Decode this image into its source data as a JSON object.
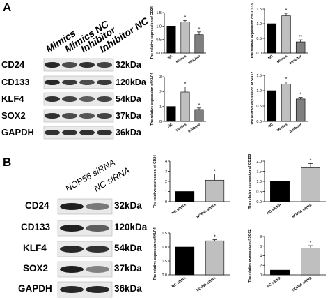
{
  "panels": {
    "a": {
      "letter": "A",
      "lanes": [
        "Mimics",
        "Mimics NC",
        "Inhibitor",
        "Inhibitor NC"
      ],
      "blots": [
        {
          "protein": "CD24",
          "kda": "32kDa",
          "intensity": [
            0.9,
            0.7,
            0.85,
            0.75
          ]
        },
        {
          "protein": "CD133",
          "kda": "120kDa",
          "intensity": [
            0.9,
            0.8,
            0.7,
            0.8
          ]
        },
        {
          "protein": "KLF4",
          "kda": "54kDa",
          "intensity": [
            0.85,
            0.75,
            0.6,
            0.75
          ]
        },
        {
          "protein": "SOX2",
          "kda": "37kDa",
          "intensity": [
            0.85,
            0.7,
            0.65,
            0.75
          ]
        },
        {
          "protein": "GAPDH",
          "kda": "36kDa",
          "intensity": [
            0.85,
            0.85,
            0.85,
            0.85
          ]
        }
      ]
    },
    "b": {
      "letter": "B",
      "lanes": [
        "NOP56 siRNA",
        "NC siRNA"
      ],
      "blots": [
        {
          "protein": "CD24",
          "kda": "32kDa",
          "intensity": [
            0.95,
            0.45
          ]
        },
        {
          "protein": "CD133",
          "kda": "120kDa",
          "intensity": [
            0.95,
            0.6
          ]
        },
        {
          "protein": "KLF4",
          "kda": "54kDa",
          "intensity": [
            0.9,
            0.85
          ]
        },
        {
          "protein": "SOX2",
          "kda": "37kDa",
          "intensity": [
            0.95,
            0.4
          ]
        },
        {
          "protein": "GAPDH",
          "kda": "36kDa",
          "intensity": [
            0.9,
            0.9
          ]
        }
      ]
    }
  },
  "chart_data": [
    {
      "type": "bar",
      "panel": "A",
      "ylabel": "The relative expression of CD24",
      "categories": [
        "NC",
        "Mimics",
        "Inhibitor"
      ],
      "values": [
        1.0,
        1.15,
        0.68
      ],
      "errors": [
        0,
        0.06,
        0.1
      ],
      "significance": [
        "",
        "*",
        "*"
      ],
      "ylim": [
        0,
        1.5
      ],
      "yticks": [
        "0.0",
        "0.5",
        "1.0",
        "1.5"
      ],
      "colors": [
        "#000000",
        "#bfbfbf",
        "#7f7f7f"
      ]
    },
    {
      "type": "bar",
      "panel": "A",
      "ylabel": "The relative expression of CD133",
      "categories": [
        "NC",
        "Mimics",
        "Inhibitor"
      ],
      "values": [
        1.0,
        1.27,
        0.38
      ],
      "errors": [
        0,
        0.09,
        0.07
      ],
      "significance": [
        "",
        "*",
        "**"
      ],
      "ylim": [
        0,
        1.5
      ],
      "yticks": [
        "0.0",
        "0.5",
        "1.0",
        "1.5"
      ],
      "colors": [
        "#000000",
        "#bfbfbf",
        "#7f7f7f"
      ]
    },
    {
      "type": "bar",
      "panel": "A",
      "ylabel": "The relative expression of KLF4",
      "categories": [
        "NC",
        "Mimics",
        "Inhibitor"
      ],
      "values": [
        1.0,
        1.97,
        0.8
      ],
      "errors": [
        0,
        0.35,
        0.1
      ],
      "significance": [
        "",
        "*",
        "*"
      ],
      "ylim": [
        0,
        3
      ],
      "yticks": [
        "0",
        "1",
        "2",
        "3"
      ],
      "colors": [
        "#000000",
        "#bfbfbf",
        "#7f7f7f"
      ]
    },
    {
      "type": "bar",
      "panel": "A",
      "ylabel": "The relative expression of SOX2",
      "categories": [
        "NC",
        "Mimics",
        "Inhibitor"
      ],
      "values": [
        1.0,
        1.22,
        0.73
      ],
      "errors": [
        0,
        0.06,
        0.05
      ],
      "significance": [
        "",
        "*",
        "*"
      ],
      "ylim": [
        0,
        1.5
      ],
      "yticks": [
        "0.0",
        "0.5",
        "1.0",
        "1.5"
      ],
      "colors": [
        "#000000",
        "#bfbfbf",
        "#7f7f7f"
      ]
    },
    {
      "type": "bar",
      "panel": "B",
      "ylabel": "The relative expression of CD24",
      "categories": [
        "NC siRNA",
        "NOP56 siRNA"
      ],
      "values": [
        1.0,
        2.12
      ],
      "errors": [
        0,
        0.6
      ],
      "significance": [
        "",
        "*"
      ],
      "ylim": [
        0,
        4
      ],
      "yticks": [
        "0",
        "1",
        "2",
        "3",
        "4"
      ],
      "colors": [
        "#000000",
        "#bfbfbf"
      ]
    },
    {
      "type": "bar",
      "panel": "B",
      "ylabel": "The relative expression of CD133",
      "categories": [
        "NC siRNA",
        "NOP56 siRNA"
      ],
      "values": [
        1.0,
        1.68
      ],
      "errors": [
        0,
        0.2
      ],
      "significance": [
        "",
        "*"
      ],
      "ylim": [
        0,
        2.0
      ],
      "yticks": [
        "0.0",
        "0.5",
        "1.0",
        "1.5",
        "2.0"
      ],
      "colors": [
        "#000000",
        "#bfbfbf"
      ]
    },
    {
      "type": "bar",
      "panel": "B",
      "ylabel": "The relative expression of KLF4",
      "categories": [
        "NC siRNA",
        "NOP56 siRNA"
      ],
      "values": [
        1.0,
        1.22
      ],
      "errors": [
        0,
        0.04
      ],
      "significance": [
        "",
        "*"
      ],
      "ylim": [
        0,
        1.5
      ],
      "yticks": [
        "0.0",
        "0.5",
        "1.0",
        "1.5"
      ],
      "colors": [
        "#000000",
        "#bfbfbf"
      ]
    },
    {
      "type": "bar",
      "panel": "B",
      "ylabel": "The relative expression of SOX2",
      "categories": [
        "NC siRNA",
        "NOP56 siRNA"
      ],
      "values": [
        1.0,
        5.6
      ],
      "errors": [
        0,
        0.5
      ],
      "significance": [
        "",
        "*"
      ],
      "ylim": [
        0,
        8
      ],
      "yticks": [
        "0",
        "2",
        "4",
        "6",
        "8"
      ],
      "colors": [
        "#000000",
        "#bfbfbf"
      ]
    }
  ]
}
